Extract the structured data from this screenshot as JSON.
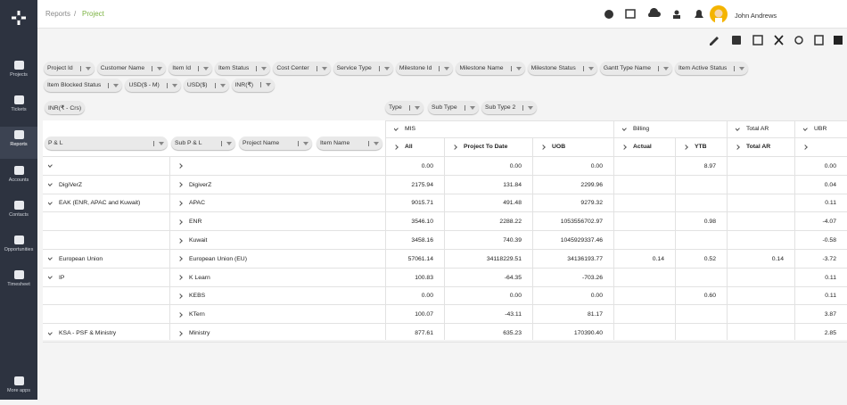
{
  "sidebar": {
    "items": [
      "Projects",
      "Tickets",
      "Reports",
      "Accounts",
      "Contacts",
      "Opportunities",
      "Timesheet"
    ],
    "active": 2,
    "more": "More apps"
  },
  "header": {
    "breadcrumb": [
      "Reports",
      "Project"
    ],
    "separator": "/",
    "user": "John Andrews"
  },
  "filters": {
    "row1": [
      "Project Id",
      "Customer Name",
      "Item Id",
      "Item Status",
      "Cost Center",
      "Service Type",
      "Milestone Id",
      "Milestone Name",
      "Milestone Status",
      "Gantt Type Name",
      "Item Active Status"
    ],
    "row2": [
      "Item Blocked Status",
      "USD($ - M)",
      "USD($)",
      "INR(₹)"
    ]
  },
  "measure": "INR(₹ - Crs)",
  "column_fields": [
    "Type",
    "Sub Type",
    "Sub Type 2"
  ],
  "row_fields": [
    "P & L",
    "Sub P & L",
    "Project Name",
    "Item Name"
  ],
  "columns": {
    "groups": [
      {
        "label": "MIS",
        "columns": [
          "All",
          "Project To Date",
          "UOB"
        ]
      },
      {
        "label": "Billing",
        "columns": [
          "Actual",
          "YTB"
        ]
      },
      {
        "label": "Total AR",
        "columns": [
          "Total AR"
        ]
      },
      {
        "label": "UBR",
        "columns": [
          null
        ]
      }
    ]
  },
  "rows": [
    {
      "pl": null,
      "sub": null,
      "values": [
        "0.00",
        "0.00",
        "0.00",
        null,
        "8.97",
        null,
        "0.00"
      ]
    },
    {
      "pl": "DigiVerZ",
      "sub": "DigiverZ",
      "values": [
        "2175.94",
        "131.84",
        "2299.96",
        null,
        null,
        null,
        "0.04"
      ]
    },
    {
      "pl": "EAK (ENR, APAC and Kuwait)",
      "sub": "APAC",
      "values": [
        "9015.71",
        "491.48",
        "9279.32",
        null,
        null,
        null,
        "0.11"
      ]
    },
    {
      "sub": "ENR",
      "values": [
        "3546.10",
        "2288.22",
        "1053556702.97",
        null,
        "0.98",
        null,
        "-4.07"
      ]
    },
    {
      "sub": "Kuwait",
      "values": [
        "3458.16",
        "740.39",
        "1045929337.46",
        null,
        null,
        null,
        "-0.58"
      ]
    },
    {
      "pl": "European Union",
      "sub": "European Union (EU)",
      "values": [
        "57061.14",
        "34118229.51",
        "34136193.77",
        "0.14",
        "0.52",
        "0.14",
        "-3.72"
      ]
    },
    {
      "pl": "IP",
      "sub": "K Learn",
      "values": [
        "100.83",
        "-64.35",
        "-703.26",
        null,
        null,
        null,
        "0.11"
      ]
    },
    {
      "sub": "KEBS",
      "values": [
        "0.00",
        "0.00",
        "0.00",
        null,
        "0.60",
        null,
        "0.11"
      ]
    },
    {
      "sub": "KTern",
      "values": [
        "100.07",
        "-43.11",
        "81.17",
        null,
        null,
        null,
        "3.87"
      ]
    },
    {
      "pl": "KSA - PSF & Ministry",
      "sub": "Ministry",
      "values": [
        "877.61",
        "635.23",
        "170390.40",
        null,
        null,
        null,
        "2.85"
      ]
    }
  ]
}
